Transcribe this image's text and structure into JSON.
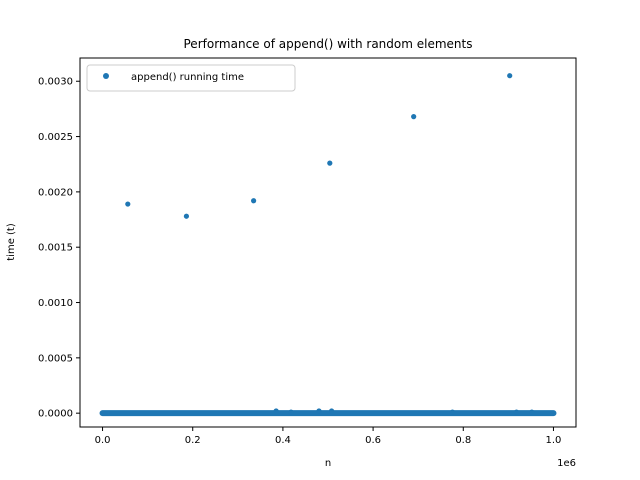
{
  "chart_data": {
    "type": "scatter",
    "title": "Performance of append() with random elements",
    "xlabel": "n",
    "ylabel": "time (t)",
    "x_offset_label": "1e6",
    "xlim": [
      -50000,
      1050000
    ],
    "ylim": [
      -0.000125,
      0.00321
    ],
    "grid": false,
    "legend_position": "top-left",
    "marker_color": "#1f77b4",
    "x_ticks": [
      0,
      200000,
      400000,
      600000,
      800000,
      1000000
    ],
    "x_tick_labels": [
      "0.0",
      "0.2",
      "0.4",
      "0.6",
      "0.8",
      "1.0"
    ],
    "y_ticks": [
      0.0,
      0.0005,
      0.001,
      0.0015,
      0.002,
      0.0025,
      0.003
    ],
    "y_tick_labels": [
      "0.0000",
      "0.0005",
      "0.0010",
      "0.0015",
      "0.0020",
      "0.0025",
      "0.0030"
    ],
    "series": [
      {
        "name": "append() running time",
        "baseline": {
          "x_start": 0,
          "x_end": 1000000,
          "y": 2e-07
        },
        "points": [
          {
            "x": 56000,
            "y": 0.00189
          },
          {
            "x": 186000,
            "y": 0.00178
          },
          {
            "x": 335000,
            "y": 0.00192
          },
          {
            "x": 504000,
            "y": 0.00226
          },
          {
            "x": 690000,
            "y": 0.00268
          },
          {
            "x": 903000,
            "y": 0.00305
          },
          {
            "x": 385000,
            "y": 2e-05
          },
          {
            "x": 418000,
            "y": 1e-05
          },
          {
            "x": 480000,
            "y": 2e-05
          },
          {
            "x": 508000,
            "y": 2e-05
          },
          {
            "x": 776000,
            "y": 1e-05
          },
          {
            "x": 918000,
            "y": 1e-05
          },
          {
            "x": 952000,
            "y": 1e-05
          }
        ]
      }
    ]
  }
}
